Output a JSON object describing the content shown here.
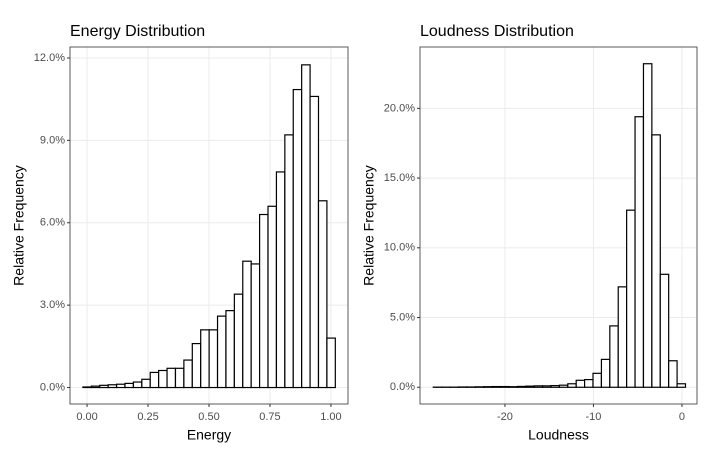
{
  "chart_data": [
    {
      "type": "histogram",
      "title": "Energy Distribution",
      "x_label": "Energy",
      "y_label": "Relative Frequency",
      "bins": [
        -0.017,
        0.0175,
        0.052,
        0.0865,
        0.121,
        0.1555,
        0.19,
        0.2245,
        0.259,
        0.2935,
        0.328,
        0.3625,
        0.397,
        0.4315,
        0.466,
        0.5005,
        0.535,
        0.5695,
        0.604,
        0.6385,
        0.673,
        0.7075,
        0.742,
        0.7765,
        0.811,
        0.8455,
        0.88,
        0.9145,
        0.949,
        0.9835,
        1.018
      ],
      "values": [
        0.02,
        0.05,
        0.08,
        0.1,
        0.12,
        0.15,
        0.2,
        0.3,
        0.55,
        0.62,
        0.7,
        0.7,
        1.0,
        1.6,
        2.1,
        2.1,
        2.6,
        2.8,
        3.4,
        4.6,
        4.5,
        6.3,
        6.6,
        7.85,
        9.2,
        10.85,
        11.75,
        10.6,
        6.8,
        1.8
      ],
      "xlim": [
        -0.07,
        1.07
      ],
      "xticks": [
        {
          "value": 0,
          "label": "0.00"
        },
        {
          "value": 0.25,
          "label": "0.25"
        },
        {
          "value": 0.5,
          "label": "0.50"
        },
        {
          "value": 0.75,
          "label": "0.75"
        },
        {
          "value": 1,
          "label": "1.00"
        }
      ],
      "ylim": [
        -0.6,
        12.4
      ],
      "yticks": [
        {
          "value": 0,
          "label": "0.0%"
        },
        {
          "value": 3,
          "label": "3.0%"
        },
        {
          "value": 6,
          "label": "6.0%"
        },
        {
          "value": 9,
          "label": "9.0%"
        },
        {
          "value": 12,
          "label": "12.0%"
        }
      ],
      "grid": true,
      "color": "#ffffff",
      "edgecolor": "#000000"
    },
    {
      "type": "histogram",
      "title": "Loudness Distribution",
      "x_label": "Loudness",
      "y_label": "Relative Frequency",
      "bins": [
        -28.1,
        -27.15,
        -26.2,
        -25.25,
        -24.3,
        -23.35,
        -22.4,
        -21.45,
        -20.5,
        -19.55,
        -18.6,
        -17.65,
        -16.7,
        -15.75,
        -14.8,
        -13.85,
        -12.9,
        -11.95,
        -11.0,
        -10.05,
        -9.1,
        -8.15,
        -7.2,
        -6.25,
        -5.3,
        -4.35,
        -3.4,
        -2.45,
        -1.5,
        -0.55,
        0.4
      ],
      "values": [
        0.01,
        0.01,
        0.01,
        0.02,
        0.02,
        0.03,
        0.04,
        0.05,
        0.05,
        0.04,
        0.06,
        0.08,
        0.1,
        0.1,
        0.12,
        0.15,
        0.25,
        0.5,
        0.55,
        1.0,
        2.0,
        4.4,
        7.2,
        12.7,
        19.4,
        23.2,
        18.1,
        8.1,
        1.9,
        0.25
      ],
      "xlim": [
        -29.6,
        1.7
      ],
      "xticks": [
        -20,
        -10,
        0
      ],
      "ylim": [
        -1.2,
        24.4
      ],
      "yticks": [
        {
          "value": 0,
          "label": "0.0%"
        },
        {
          "value": 5,
          "label": "5.0%"
        },
        {
          "value": 10,
          "label": "10.0%"
        },
        {
          "value": 15,
          "label": "15.0%"
        },
        {
          "value": 20,
          "label": "20.0%"
        }
      ],
      "grid": true,
      "color": "#ffffff",
      "edgecolor": "#000000"
    }
  ]
}
